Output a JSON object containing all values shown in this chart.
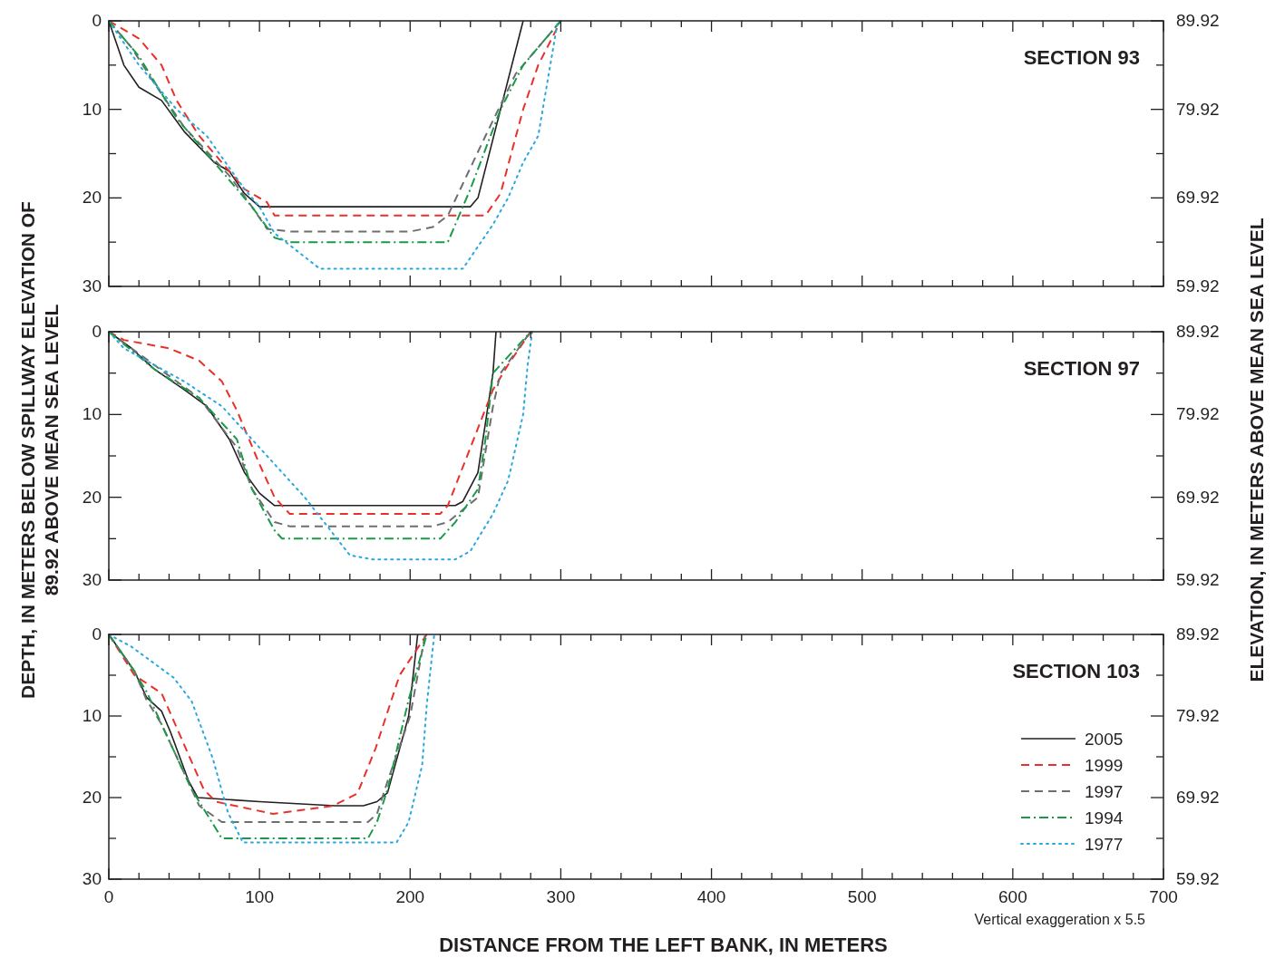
{
  "chart_data": [
    {
      "type": "line",
      "title": "SECTION 93",
      "xlim": [
        0,
        700
      ],
      "ylim": [
        30,
        0
      ],
      "y2lim": [
        59.92,
        89.92
      ],
      "xticks": [
        0,
        {
          "value": 20,
          "label": null
        },
        {
          "value": 40,
          "label": null
        },
        {
          "value": 60,
          "label": null
        },
        {
          "value": 80,
          "label": null
        },
        100,
        {
          "value": 120,
          "label": null
        },
        {
          "value": 140,
          "label": null
        },
        {
          "value": 160,
          "label": null
        },
        {
          "value": 180,
          "label": null
        },
        200,
        {
          "value": 220,
          "label": null
        },
        {
          "value": 240,
          "label": null
        },
        {
          "value": 260,
          "label": null
        },
        {
          "value": 280,
          "label": null
        },
        300,
        {
          "value": 320,
          "label": null
        },
        {
          "value": 340,
          "label": null
        },
        {
          "value": 360,
          "label": null
        },
        {
          "value": 380,
          "label": null
        },
        400,
        {
          "value": 420,
          "label": null
        },
        {
          "value": 440,
          "label": null
        },
        {
          "value": 460,
          "label": null
        },
        {
          "value": 480,
          "label": null
        },
        500,
        {
          "value": 520,
          "label": null
        },
        {
          "value": 540,
          "label": null
        },
        {
          "value": 560,
          "label": null
        },
        {
          "value": 580,
          "label": null
        },
        600,
        {
          "value": 620,
          "label": null
        },
        {
          "value": 640,
          "label": null
        },
        {
          "value": 660,
          "label": null
        },
        {
          "value": 680,
          "label": null
        },
        700
      ],
      "yticks": [
        0,
        {
          "value": 5,
          "label": null
        },
        10,
        {
          "value": 15,
          "label": null
        },
        20,
        {
          "value": 25,
          "label": null
        },
        30
      ],
      "y2ticks": [
        89.92,
        {
          "value": 84.92,
          "label": null
        },
        79.92,
        {
          "value": 74.92,
          "label": null
        },
        69.92,
        {
          "value": 64.92,
          "label": null
        },
        59.92
      ],
      "tick_labels": "y",
      "grid": false,
      "legend": false,
      "series": [
        {
          "color": "#231f20",
          "line_style": "solid",
          "x": [
            0,
            10,
            20,
            35,
            50,
            70,
            80,
            90,
            100,
            240,
            245,
            275
          ],
          "values": [
            0,
            5,
            7.5,
            9,
            12.5,
            16,
            17,
            19.5,
            21,
            21,
            20,
            0
          ]
        },
        {
          "color": "#e8312a",
          "line_style": "dashed",
          "x": [
            0,
            20,
            35,
            45,
            60,
            90,
            105,
            110,
            250,
            260,
            275,
            285,
            300
          ],
          "values": [
            0,
            2,
            5,
            9,
            13,
            19,
            20.5,
            22,
            22,
            19.5,
            10,
            5,
            0
          ]
        },
        {
          "color": "#6d6e71",
          "line_style": "dashed",
          "x": [
            0,
            15,
            30,
            50,
            80,
            95,
            105,
            120,
            200,
            215,
            225,
            250,
            270,
            285,
            300
          ],
          "values": [
            0,
            3,
            7,
            12,
            17.5,
            21,
            23.5,
            23.8,
            23.8,
            23.3,
            22,
            13,
            6,
            3,
            0
          ]
        },
        {
          "color": "#1a9a48",
          "line_style": "dashdot",
          "x": [
            0,
            20,
            45,
            80,
            95,
            110,
            120,
            225,
            240,
            260,
            275,
            300
          ],
          "values": [
            0,
            4,
            11,
            18,
            21,
            24.5,
            25,
            25,
            19,
            10,
            5,
            0
          ]
        },
        {
          "color": "#29a8e0",
          "line_style": "dotted",
          "x": [
            0,
            20,
            45,
            65,
            90,
            100,
            110,
            140,
            235,
            255,
            265,
            275,
            285,
            290,
            298
          ],
          "values": [
            0,
            5,
            10,
            13,
            19,
            21,
            24,
            28,
            28,
            23,
            20,
            16,
            13,
            8,
            0
          ]
        }
      ]
    },
    {
      "type": "line",
      "title": "SECTION 97",
      "ylabel": "DEPTH, IN METERS BELOW SPILLWAY ELEVATION OF 89.92 ABOVE MEAN SEA LEVEL",
      "y2label": "ELEVATION, IN METERS ABOVE MEAN SEA LEVEL",
      "xlim": [
        0,
        700
      ],
      "ylim": [
        30,
        0
      ],
      "y2lim": [
        59.92,
        89.92
      ],
      "xticks": [
        0,
        {
          "value": 20,
          "label": null
        },
        {
          "value": 40,
          "label": null
        },
        {
          "value": 60,
          "label": null
        },
        {
          "value": 80,
          "label": null
        },
        100,
        {
          "value": 120,
          "label": null
        },
        {
          "value": 140,
          "label": null
        },
        {
          "value": 160,
          "label": null
        },
        {
          "value": 180,
          "label": null
        },
        200,
        {
          "value": 220,
          "label": null
        },
        {
          "value": 240,
          "label": null
        },
        {
          "value": 260,
          "label": null
        },
        {
          "value": 280,
          "label": null
        },
        300,
        {
          "value": 320,
          "label": null
        },
        {
          "value": 340,
          "label": null
        },
        {
          "value": 360,
          "label": null
        },
        {
          "value": 380,
          "label": null
        },
        400,
        {
          "value": 420,
          "label": null
        },
        {
          "value": 440,
          "label": null
        },
        {
          "value": 460,
          "label": null
        },
        {
          "value": 480,
          "label": null
        },
        500,
        {
          "value": 520,
          "label": null
        },
        {
          "value": 540,
          "label": null
        },
        {
          "value": 560,
          "label": null
        },
        {
          "value": 580,
          "label": null
        },
        600,
        {
          "value": 620,
          "label": null
        },
        {
          "value": 640,
          "label": null
        },
        {
          "value": 660,
          "label": null
        },
        {
          "value": 680,
          "label": null
        },
        700
      ],
      "yticks": [
        0,
        {
          "value": 5,
          "label": null
        },
        10,
        {
          "value": 15,
          "label": null
        },
        20,
        {
          "value": 25,
          "label": null
        },
        30
      ],
      "y2ticks": [
        89.92,
        {
          "value": 84.92,
          "label": null
        },
        79.92,
        {
          "value": 74.92,
          "label": null
        },
        69.92,
        {
          "value": 64.92,
          "label": null
        },
        59.92
      ],
      "tick_labels": "y",
      "grid": false,
      "legend": false,
      "series": [
        {
          "color": "#231f20",
          "line_style": "solid",
          "x": [
            0,
            15,
            30,
            50,
            65,
            80,
            90,
            100,
            110,
            230,
            235,
            245,
            255,
            257
          ],
          "values": [
            0,
            2,
            4.5,
            7,
            9,
            13,
            17,
            19.5,
            21,
            21,
            20.5,
            17,
            5,
            0
          ]
        },
        {
          "color": "#e8312a",
          "line_style": "dashed",
          "x": [
            0,
            10,
            40,
            60,
            75,
            85,
            100,
            110,
            120,
            220,
            225,
            240,
            255,
            265,
            280
          ],
          "values": [
            0,
            1,
            2,
            3.5,
            6,
            9.5,
            16,
            20,
            22,
            22,
            21,
            14,
            7,
            4,
            0
          ]
        },
        {
          "color": "#6d6e71",
          "line_style": "dashed",
          "x": [
            0,
            30,
            60,
            85,
            95,
            110,
            120,
            215,
            225,
            245,
            255,
            260,
            280
          ],
          "values": [
            0,
            4,
            8,
            14,
            19,
            23,
            23.5,
            23.5,
            23,
            20,
            9,
            5,
            0
          ]
        },
        {
          "color": "#1a9a48",
          "line_style": "dashdot",
          "x": [
            0,
            30,
            60,
            85,
            95,
            110,
            115,
            220,
            230,
            245,
            250,
            255,
            265,
            280
          ],
          "values": [
            0,
            4.5,
            8,
            13,
            19,
            24,
            25,
            25,
            23,
            19,
            13,
            5,
            3,
            0
          ]
        },
        {
          "color": "#29a8e0",
          "line_style": "dotted",
          "x": [
            0,
            10,
            30,
            50,
            75,
            90,
            110,
            130,
            145,
            160,
            175,
            230,
            240,
            255,
            265,
            275,
            278,
            281
          ],
          "values": [
            0,
            2,
            4,
            6,
            9,
            12,
            16,
            20,
            23.5,
            27,
            27.5,
            27.5,
            26.5,
            22,
            18,
            10,
            4,
            0
          ]
        }
      ]
    },
    {
      "type": "line",
      "title": "SECTION 103",
      "xlabel": "DISTANCE FROM THE LEFT BANK, IN METERS",
      "annotations": [
        "Vertical exaggeration x 5.5"
      ],
      "xlim": [
        0,
        700
      ],
      "ylim": [
        30,
        0
      ],
      "y2lim": [
        59.92,
        89.92
      ],
      "xticks": [
        0,
        {
          "value": 20,
          "label": null
        },
        {
          "value": 40,
          "label": null
        },
        {
          "value": 60,
          "label": null
        },
        {
          "value": 80,
          "label": null
        },
        100,
        {
          "value": 120,
          "label": null
        },
        {
          "value": 140,
          "label": null
        },
        {
          "value": 160,
          "label": null
        },
        {
          "value": 180,
          "label": null
        },
        200,
        {
          "value": 220,
          "label": null
        },
        {
          "value": 240,
          "label": null
        },
        {
          "value": 260,
          "label": null
        },
        {
          "value": 280,
          "label": null
        },
        300,
        {
          "value": 320,
          "label": null
        },
        {
          "value": 340,
          "label": null
        },
        {
          "value": 360,
          "label": null
        },
        {
          "value": 380,
          "label": null
        },
        400,
        {
          "value": 420,
          "label": null
        },
        {
          "value": 440,
          "label": null
        },
        {
          "value": 460,
          "label": null
        },
        {
          "value": 480,
          "label": null
        },
        500,
        {
          "value": 520,
          "label": null
        },
        {
          "value": 540,
          "label": null
        },
        {
          "value": 560,
          "label": null
        },
        {
          "value": 580,
          "label": null
        },
        600,
        {
          "value": 620,
          "label": null
        },
        {
          "value": 640,
          "label": null
        },
        {
          "value": 660,
          "label": null
        },
        {
          "value": 680,
          "label": null
        },
        700
      ],
      "yticks": [
        0,
        {
          "value": 5,
          "label": null
        },
        10,
        {
          "value": 15,
          "label": null
        },
        20,
        {
          "value": 25,
          "label": null
        },
        30
      ],
      "y2ticks": [
        89.92,
        {
          "value": 84.92,
          "label": null
        },
        79.92,
        {
          "value": 74.92,
          "label": null
        },
        69.92,
        {
          "value": 64.92,
          "label": null
        },
        59.92
      ],
      "grid": false,
      "legend": "bottom right",
      "series": [
        {
          "name": "2005",
          "color": "#231f20",
          "line_style": "solid",
          "x": [
            0,
            17,
            25,
            35,
            41,
            53,
            59,
            100,
            150,
            169,
            178,
            185,
            199,
            205
          ],
          "values": [
            0,
            4.5,
            7.7,
            9.4,
            12,
            18,
            20,
            20.5,
            21,
            21,
            20.5,
            19.4,
            10,
            0
          ]
        },
        {
          "name": "1999",
          "color": "#e8312a",
          "line_style": "dashed",
          "x": [
            0,
            17,
            35,
            63,
            71,
            109,
            149,
            165,
            177,
            193,
            211
          ],
          "values": [
            0,
            5,
            7.2,
            19,
            20.5,
            22,
            21,
            19.5,
            14,
            5,
            0
          ]
        },
        {
          "name": "1997",
          "color": "#6d6e71",
          "line_style": "dashed",
          "x": [
            0,
            17,
            25,
            35,
            45,
            60,
            75,
            172,
            178,
            185,
            200,
            210
          ],
          "values": [
            0,
            4.5,
            8,
            11,
            15,
            21,
            23,
            23,
            22,
            18,
            10,
            0
          ]
        },
        {
          "name": "1994",
          "color": "#1a9a48",
          "line_style": "dashdot",
          "x": [
            0,
            15,
            25,
            40,
            55,
            65,
            75,
            172,
            178,
            185,
            199,
            211
          ],
          "values": [
            0,
            4,
            7,
            13,
            19,
            22,
            25,
            25,
            23,
            19,
            8,
            0
          ]
        },
        {
          "name": "1977",
          "color": "#29a8e0",
          "line_style": "dotted",
          "x": [
            0,
            15,
            43,
            55,
            69,
            79,
            89,
            191,
            199,
            208,
            211,
            216
          ],
          "values": [
            0,
            1.5,
            5.3,
            8.2,
            15.2,
            21.8,
            25.5,
            25.5,
            23,
            16,
            8.7,
            0
          ]
        }
      ]
    }
  ]
}
